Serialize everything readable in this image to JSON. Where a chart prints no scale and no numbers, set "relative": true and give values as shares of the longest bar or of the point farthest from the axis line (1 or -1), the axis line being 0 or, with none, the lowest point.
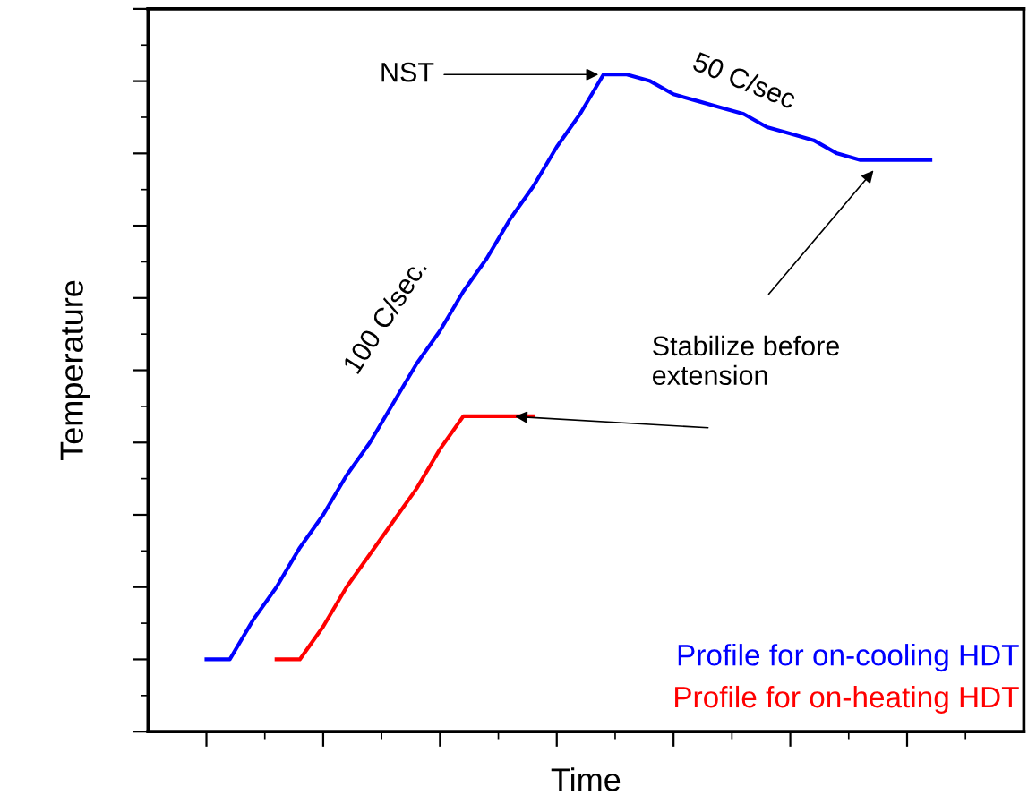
{
  "chart_data": {
    "type": "line",
    "xlabel": "Time",
    "ylabel": "Temperature",
    "relative": true,
    "tick_labels": false,
    "categories": [
      null,
      null,
      null,
      null,
      null,
      null,
      null,
      null,
      null,
      null,
      null,
      null,
      null,
      null,
      null,
      null,
      null,
      null,
      null,
      null,
      null,
      null,
      null,
      null,
      null,
      null,
      null,
      null,
      null,
      null,
      null,
      null
    ],
    "series": [
      {
        "name": "Profile for on-cooling HDT",
        "color": "#0000ff",
        "values": [
          0.11,
          0.11,
          0.17,
          0.22,
          0.28,
          0.33,
          0.39,
          0.44,
          0.5,
          0.56,
          0.61,
          0.67,
          0.72,
          0.78,
          0.83,
          0.89,
          0.94,
          1.0,
          1.0,
          0.99,
          0.97,
          0.96,
          0.95,
          0.94,
          0.92,
          0.91,
          0.9,
          0.88,
          0.87,
          0.87,
          0.87,
          0.87
        ]
      },
      {
        "name": "Profile for on-heating HDT",
        "color": "#ff0000",
        "values": [
          null,
          null,
          null,
          0.11,
          0.11,
          0.16,
          0.22,
          0.27,
          0.32,
          0.37,
          0.43,
          0.48,
          0.48,
          0.48,
          0.48,
          null,
          null,
          null,
          null,
          null,
          null,
          null,
          null,
          null,
          null,
          null,
          null,
          null,
          null,
          null,
          null,
          null
        ]
      }
    ],
    "annotations": [
      "NST",
      "50 C/sec",
      "100 C/sec.",
      "Stabilize before\nextension"
    ],
    "legend": false,
    "grid": false,
    "marker": "none",
    "line_style": "solid"
  }
}
